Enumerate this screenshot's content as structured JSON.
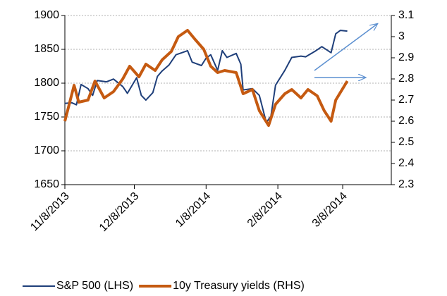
{
  "chart_data": {
    "type": "line",
    "xlim": [
      "11/8/2013",
      "3/29/2014"
    ],
    "xticks": [
      "11/8/2013",
      "12/8/2013",
      "1/8/2014",
      "2/8/2014",
      "3/8/2014"
    ],
    "ylim": [
      1650,
      1900
    ],
    "yticks": [
      1650,
      1700,
      1750,
      1800,
      1850,
      1900
    ],
    "y2lim": [
      2.3,
      3.1
    ],
    "y2ticks": [
      2.3,
      2.4,
      2.5,
      2.6,
      2.7,
      2.8,
      2.9,
      3,
      3.1
    ],
    "grid": true,
    "legend": "bottom",
    "series": [
      {
        "name": "S&P 500 (LHS)",
        "color": "#1f3f7a",
        "axis": "y",
        "x": [
          "11/8/2013",
          "11/11/2013",
          "11/13/2013",
          "11/15/2013",
          "11/18/2013",
          "11/20/2013",
          "11/22/2013",
          "11/26/2013",
          "11/29/2013",
          "12/3/2013",
          "12/5/2013",
          "12/9/2013",
          "12/11/2013",
          "12/13/2013",
          "12/16/2013",
          "12/18/2013",
          "12/20/2013",
          "12/23/2013",
          "12/26/2013",
          "12/31/2013",
          "1/2/2014",
          "1/6/2014",
          "1/8/2014",
          "1/10/2014",
          "1/13/2014",
          "1/15/2014",
          "1/17/2014",
          "1/21/2014",
          "1/23/2014",
          "1/24/2014",
          "1/28/2014",
          "1/31/2014",
          "2/3/2014",
          "2/5/2014",
          "2/7/2014",
          "2/11/2014",
          "2/14/2014",
          "2/18/2014",
          "2/20/2014",
          "2/24/2014",
          "2/27/2014",
          "3/3/2014",
          "3/5/2014",
          "3/7/2014",
          "3/10/2014"
        ],
        "values": [
          1770,
          1771,
          1768,
          1798,
          1792,
          1782,
          1804,
          1802,
          1806,
          1795,
          1785,
          1808,
          1782,
          1775,
          1786,
          1810,
          1818,
          1827,
          1842,
          1848,
          1831,
          1826,
          1837,
          1842,
          1819,
          1848,
          1838,
          1844,
          1828,
          1790,
          1792,
          1782,
          1742,
          1751,
          1797,
          1819,
          1838,
          1840,
          1839,
          1847,
          1854,
          1845,
          1873,
          1878,
          1877
        ]
      },
      {
        "name": "10y Treasury yields (RHS)",
        "color": "#c55a11",
        "axis": "y2",
        "x": [
          "11/8/2013",
          "11/12/2013",
          "11/14/2013",
          "11/18/2013",
          "11/21/2013",
          "11/25/2013",
          "11/29/2013",
          "12/3/2013",
          "12/6/2013",
          "12/10/2013",
          "12/13/2013",
          "12/17/2013",
          "12/20/2013",
          "12/24/2013",
          "12/27/2013",
          "12/31/2013",
          "1/3/2014",
          "1/7/2014",
          "1/10/2014",
          "1/13/2014",
          "1/16/2014",
          "1/21/2014",
          "1/24/2014",
          "1/28/2014",
          "1/31/2014",
          "2/4/2014",
          "2/7/2014",
          "2/11/2014",
          "2/14/2014",
          "2/18/2014",
          "2/21/2014",
          "2/25/2014",
          "2/28/2014",
          "3/3/2014",
          "3/5/2014",
          "3/10/2014"
        ],
        "values": [
          2.6,
          2.77,
          2.69,
          2.7,
          2.79,
          2.71,
          2.74,
          2.8,
          2.86,
          2.81,
          2.87,
          2.84,
          2.89,
          2.93,
          3.0,
          3.03,
          2.99,
          2.94,
          2.86,
          2.83,
          2.84,
          2.83,
          2.73,
          2.75,
          2.65,
          2.58,
          2.68,
          2.73,
          2.75,
          2.71,
          2.75,
          2.72,
          2.65,
          2.6,
          2.7,
          2.79
        ]
      }
    ]
  }
}
